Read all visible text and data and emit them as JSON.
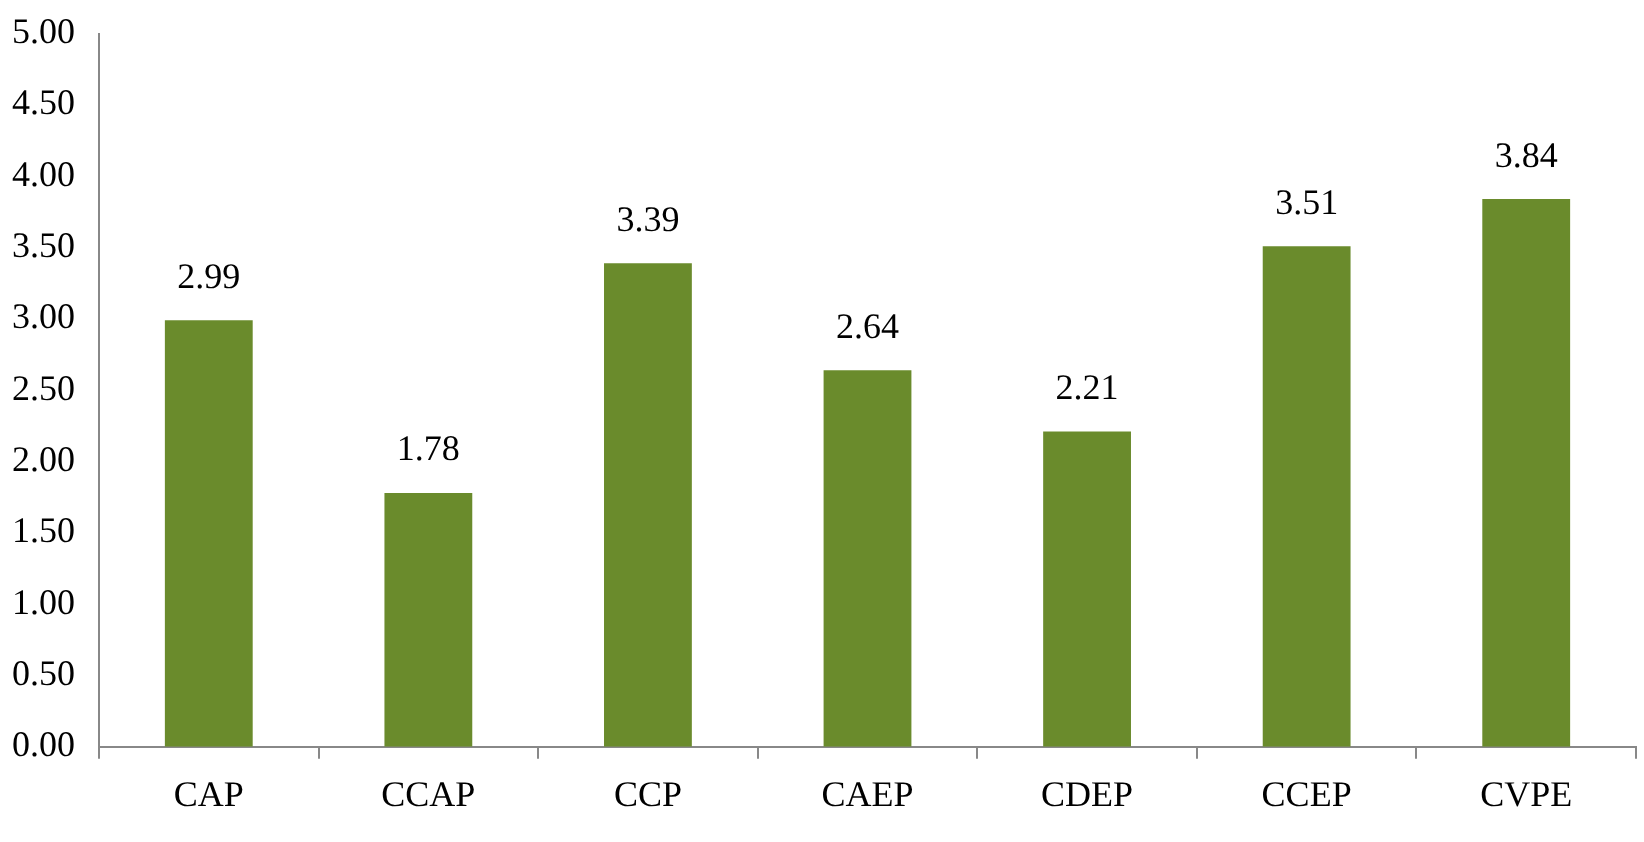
{
  "chart_data": {
    "type": "bar",
    "categories": [
      "CAP",
      "CCAP",
      "CCP",
      "CAEP",
      "CDEP",
      "CCEP",
      "CVPE"
    ],
    "values": [
      2.99,
      1.78,
      3.39,
      2.64,
      2.21,
      3.51,
      3.84
    ],
    "color": "#6a8b2c",
    "ylim": [
      0,
      5
    ],
    "yticks": [
      {
        "value": 0,
        "label": "0.00"
      },
      {
        "value": 0.5,
        "label": "0.50"
      },
      {
        "value": 1,
        "label": "1.00"
      },
      {
        "value": 1.5,
        "label": "1.50"
      },
      {
        "value": 2,
        "label": "2.00"
      },
      {
        "value": 2.5,
        "label": "2.50"
      },
      {
        "value": 3,
        "label": "3.00"
      },
      {
        "value": 3.5,
        "label": "3.50"
      },
      {
        "value": 4,
        "label": "4.00"
      },
      {
        "value": 4.5,
        "label": "4.50"
      },
      {
        "value": 5,
        "label": "5.00"
      }
    ],
    "grid": false,
    "legend": false,
    "data_labels": true
  }
}
